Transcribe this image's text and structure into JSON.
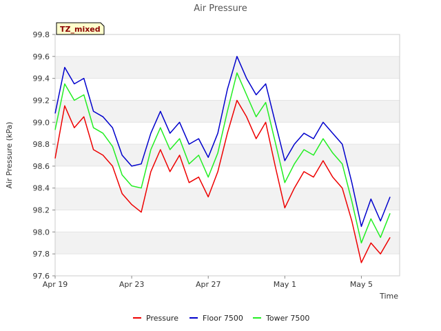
{
  "chart_data": {
    "type": "line",
    "title": "Air Pressure",
    "xlabel": "Time",
    "ylabel": "Air Pressure (kPa)",
    "badge": "TZ_mixed",
    "x_ticks": [
      "Apr 19",
      "Apr 23",
      "Apr 27",
      "May 1",
      "May 5"
    ],
    "y_ticks": [
      "97.6",
      "97.8",
      "98.0",
      "98.2",
      "98.4",
      "98.6",
      "98.8",
      "99.0",
      "99.2",
      "99.4",
      "99.6",
      "99.8"
    ],
    "x_range": [
      "Apr 19",
      "May 7"
    ],
    "ylim": [
      97.6,
      99.8
    ],
    "grid": "horizontal bands",
    "legend_position": "bottom",
    "x": [
      "Apr 19",
      "Apr 19.5",
      "Apr 20",
      "Apr 20.5",
      "Apr 21",
      "Apr 21.5",
      "Apr 22",
      "Apr 22.5",
      "Apr 23",
      "Apr 23.5",
      "Apr 24",
      "Apr 24.5",
      "Apr 25",
      "Apr 25.5",
      "Apr 26",
      "Apr 26.5",
      "Apr 27",
      "Apr 27.5",
      "Apr 28",
      "Apr 28.5",
      "Apr 29",
      "Apr 29.5",
      "Apr 30",
      "Apr 30.5",
      "May 1",
      "May 1.5",
      "May 2",
      "May 2.5",
      "May 3",
      "May 3.5",
      "May 4",
      "May 4.5",
      "May 5",
      "May 5.5",
      "May 6",
      "May 6.5"
    ],
    "series": [
      {
        "name": "Pressure",
        "color": "#ee0000",
        "values": [
          98.67,
          99.15,
          98.95,
          99.05,
          98.75,
          98.7,
          98.6,
          98.35,
          98.25,
          98.18,
          98.55,
          98.75,
          98.55,
          98.7,
          98.45,
          98.5,
          98.32,
          98.55,
          98.9,
          99.2,
          99.05,
          98.85,
          99.0,
          98.6,
          98.22,
          98.4,
          98.55,
          98.5,
          98.65,
          98.5,
          98.4,
          98.1,
          97.72,
          97.9,
          97.8,
          97.95
        ]
      },
      {
        "name": "Floor 7500",
        "color": "#0000cc",
        "values": [
          99.08,
          99.5,
          99.35,
          99.4,
          99.1,
          99.05,
          98.95,
          98.7,
          98.6,
          98.62,
          98.9,
          99.1,
          98.9,
          99.0,
          98.8,
          98.85,
          98.68,
          98.9,
          99.3,
          99.6,
          99.4,
          99.25,
          99.35,
          99.0,
          98.65,
          98.8,
          98.9,
          98.85,
          99.0,
          98.9,
          98.8,
          98.45,
          98.05,
          98.3,
          98.1,
          98.32
        ]
      },
      {
        "name": "Tower 7500",
        "color": "#22ee22",
        "values": [
          98.93,
          99.35,
          99.2,
          99.25,
          98.95,
          98.9,
          98.78,
          98.52,
          98.42,
          98.4,
          98.75,
          98.95,
          98.75,
          98.85,
          98.62,
          98.7,
          98.5,
          98.72,
          99.1,
          99.45,
          99.25,
          99.05,
          99.18,
          98.82,
          98.45,
          98.62,
          98.75,
          98.7,
          98.85,
          98.72,
          98.62,
          98.28,
          97.9,
          98.12,
          97.95,
          98.17
        ]
      }
    ]
  }
}
